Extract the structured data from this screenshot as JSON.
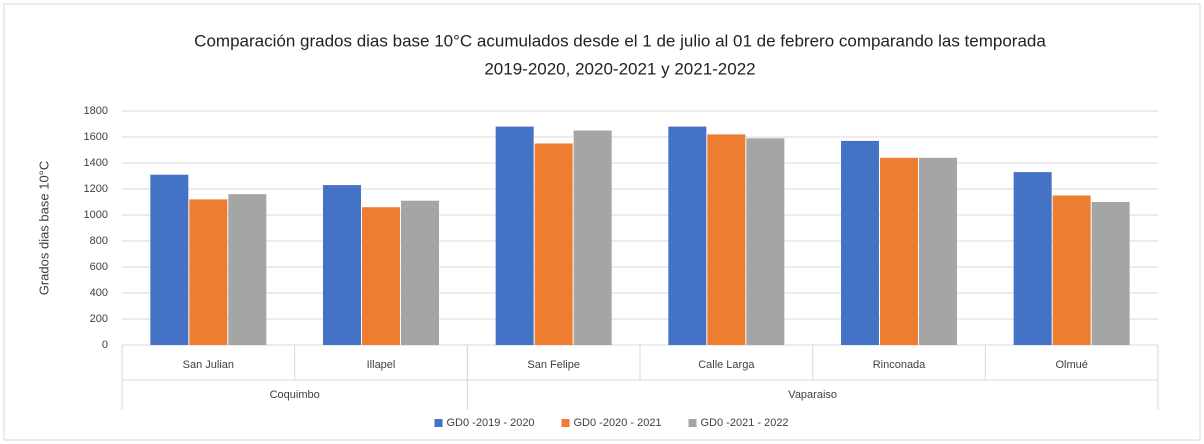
{
  "chart_data": {
    "type": "bar",
    "title": [
      "Comparación grados dias base 10°C acumulados desde el 1 de julio al 01 de febrero comparando las temporada",
      "2019-2020, 2020-2021 y 2021-2022"
    ],
    "y_label": "Grados  dias base 10°C",
    "categories": [
      "San Julian",
      "Illapel",
      "San Felipe",
      "Calle Larga",
      "Rinconada",
      "Olmué"
    ],
    "groups": [
      {
        "label": "Coquimbo",
        "count": 2
      },
      {
        "label": "Vaparaiso",
        "count": 4
      }
    ],
    "series": [
      {
        "name": "GD0 -2019 - 2020",
        "color": "#4472c4",
        "values": [
          1310,
          1230,
          1680,
          1680,
          1570,
          1330
        ]
      },
      {
        "name": "GD0 -2020 - 2021",
        "color": "#ed7d31",
        "values": [
          1120,
          1060,
          1550,
          1620,
          1440,
          1150
        ]
      },
      {
        "name": "GD0 -2021 - 2022",
        "color": "#a5a5a5",
        "values": [
          1160,
          1110,
          1650,
          1590,
          1440,
          1100
        ]
      }
    ],
    "ylim": [
      0,
      1800
    ],
    "yticks": [
      0,
      200,
      400,
      600,
      800,
      1000,
      1200,
      1400,
      1600,
      1800
    ],
    "grid": true,
    "legend": "bottom"
  }
}
